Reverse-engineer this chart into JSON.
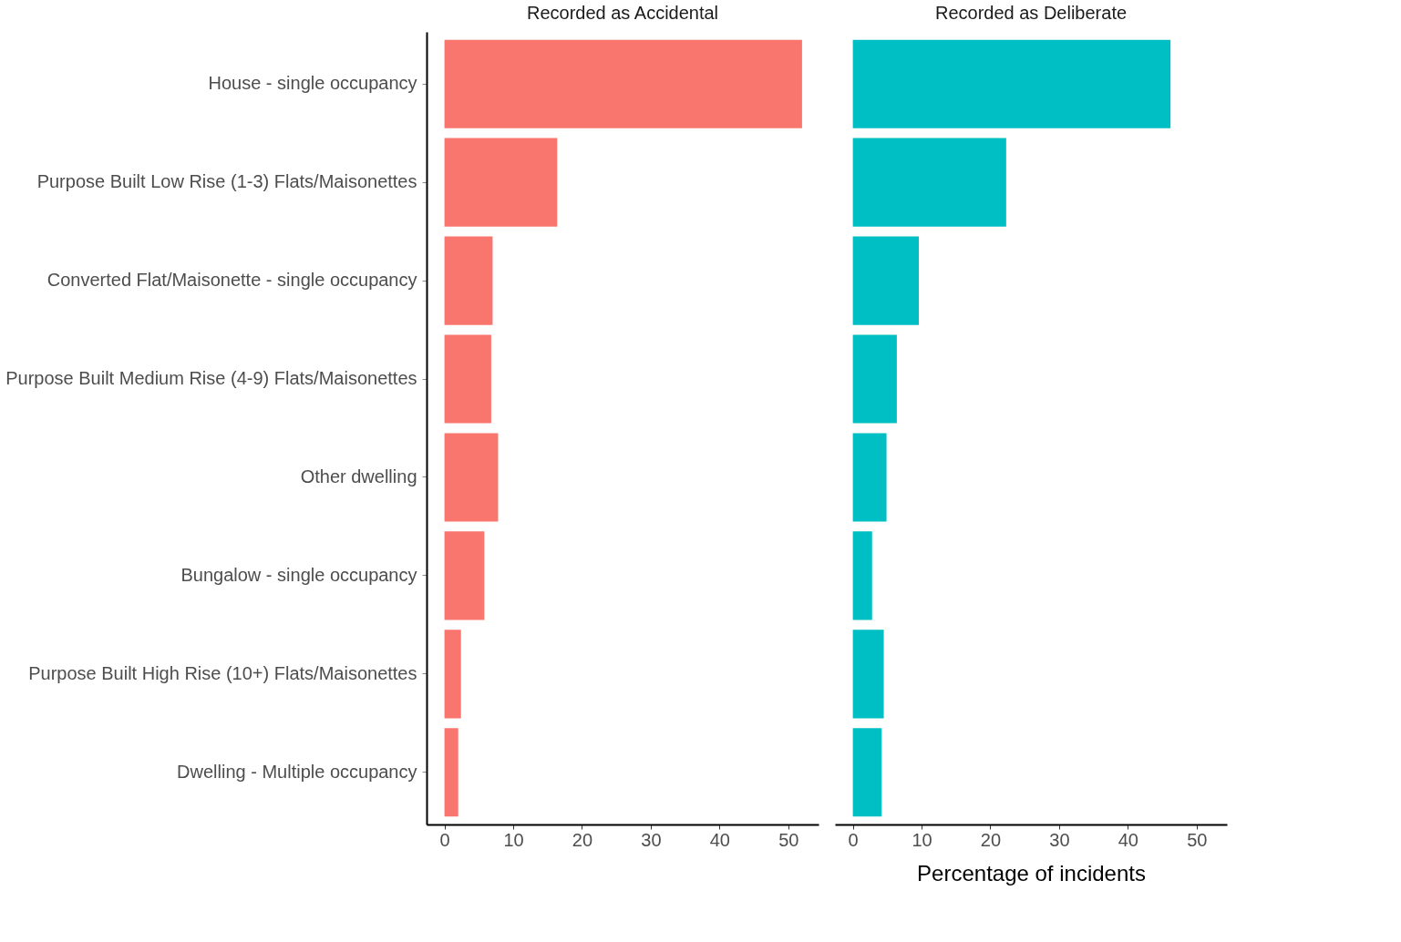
{
  "chart_data": [
    {
      "type": "bar",
      "orientation": "horizontal",
      "title": "Recorded as Accidental",
      "categories": [
        "House - single occupancy",
        "Purpose Built Low Rise (1-3) Flats/Maisonettes",
        "Converted Flat/Maisonette - single occupancy",
        "Purpose Built Medium Rise (4-9) Flats/Maisonettes",
        "Other dwelling",
        "Bungalow - single occupancy",
        "Purpose Built High Rise (10+) Flats/Maisonettes",
        "Dwelling - Multiple occupancy"
      ],
      "values": [
        52.0,
        16.4,
        7.0,
        6.8,
        7.8,
        5.8,
        2.4,
        2.0
      ],
      "color": "#f8766d",
      "xlim": [
        -2.6,
        54.4
      ],
      "xticks": [
        0,
        10,
        20,
        30,
        40,
        50
      ],
      "grid": false,
      "legend": false
    },
    {
      "type": "bar",
      "orientation": "horizontal",
      "title": "Recorded as Deliberate",
      "xlabel": "Percentage of incidents",
      "values": [
        46.2,
        22.3,
        9.6,
        6.4,
        4.9,
        2.8,
        4.5,
        4.2
      ],
      "color": "#00bfc4",
      "xlim": [
        -2.6,
        54.4
      ],
      "xticks": [
        0,
        10,
        20,
        30,
        40,
        50
      ],
      "grid": false,
      "legend": false,
      "tick_labels": "x"
    }
  ]
}
